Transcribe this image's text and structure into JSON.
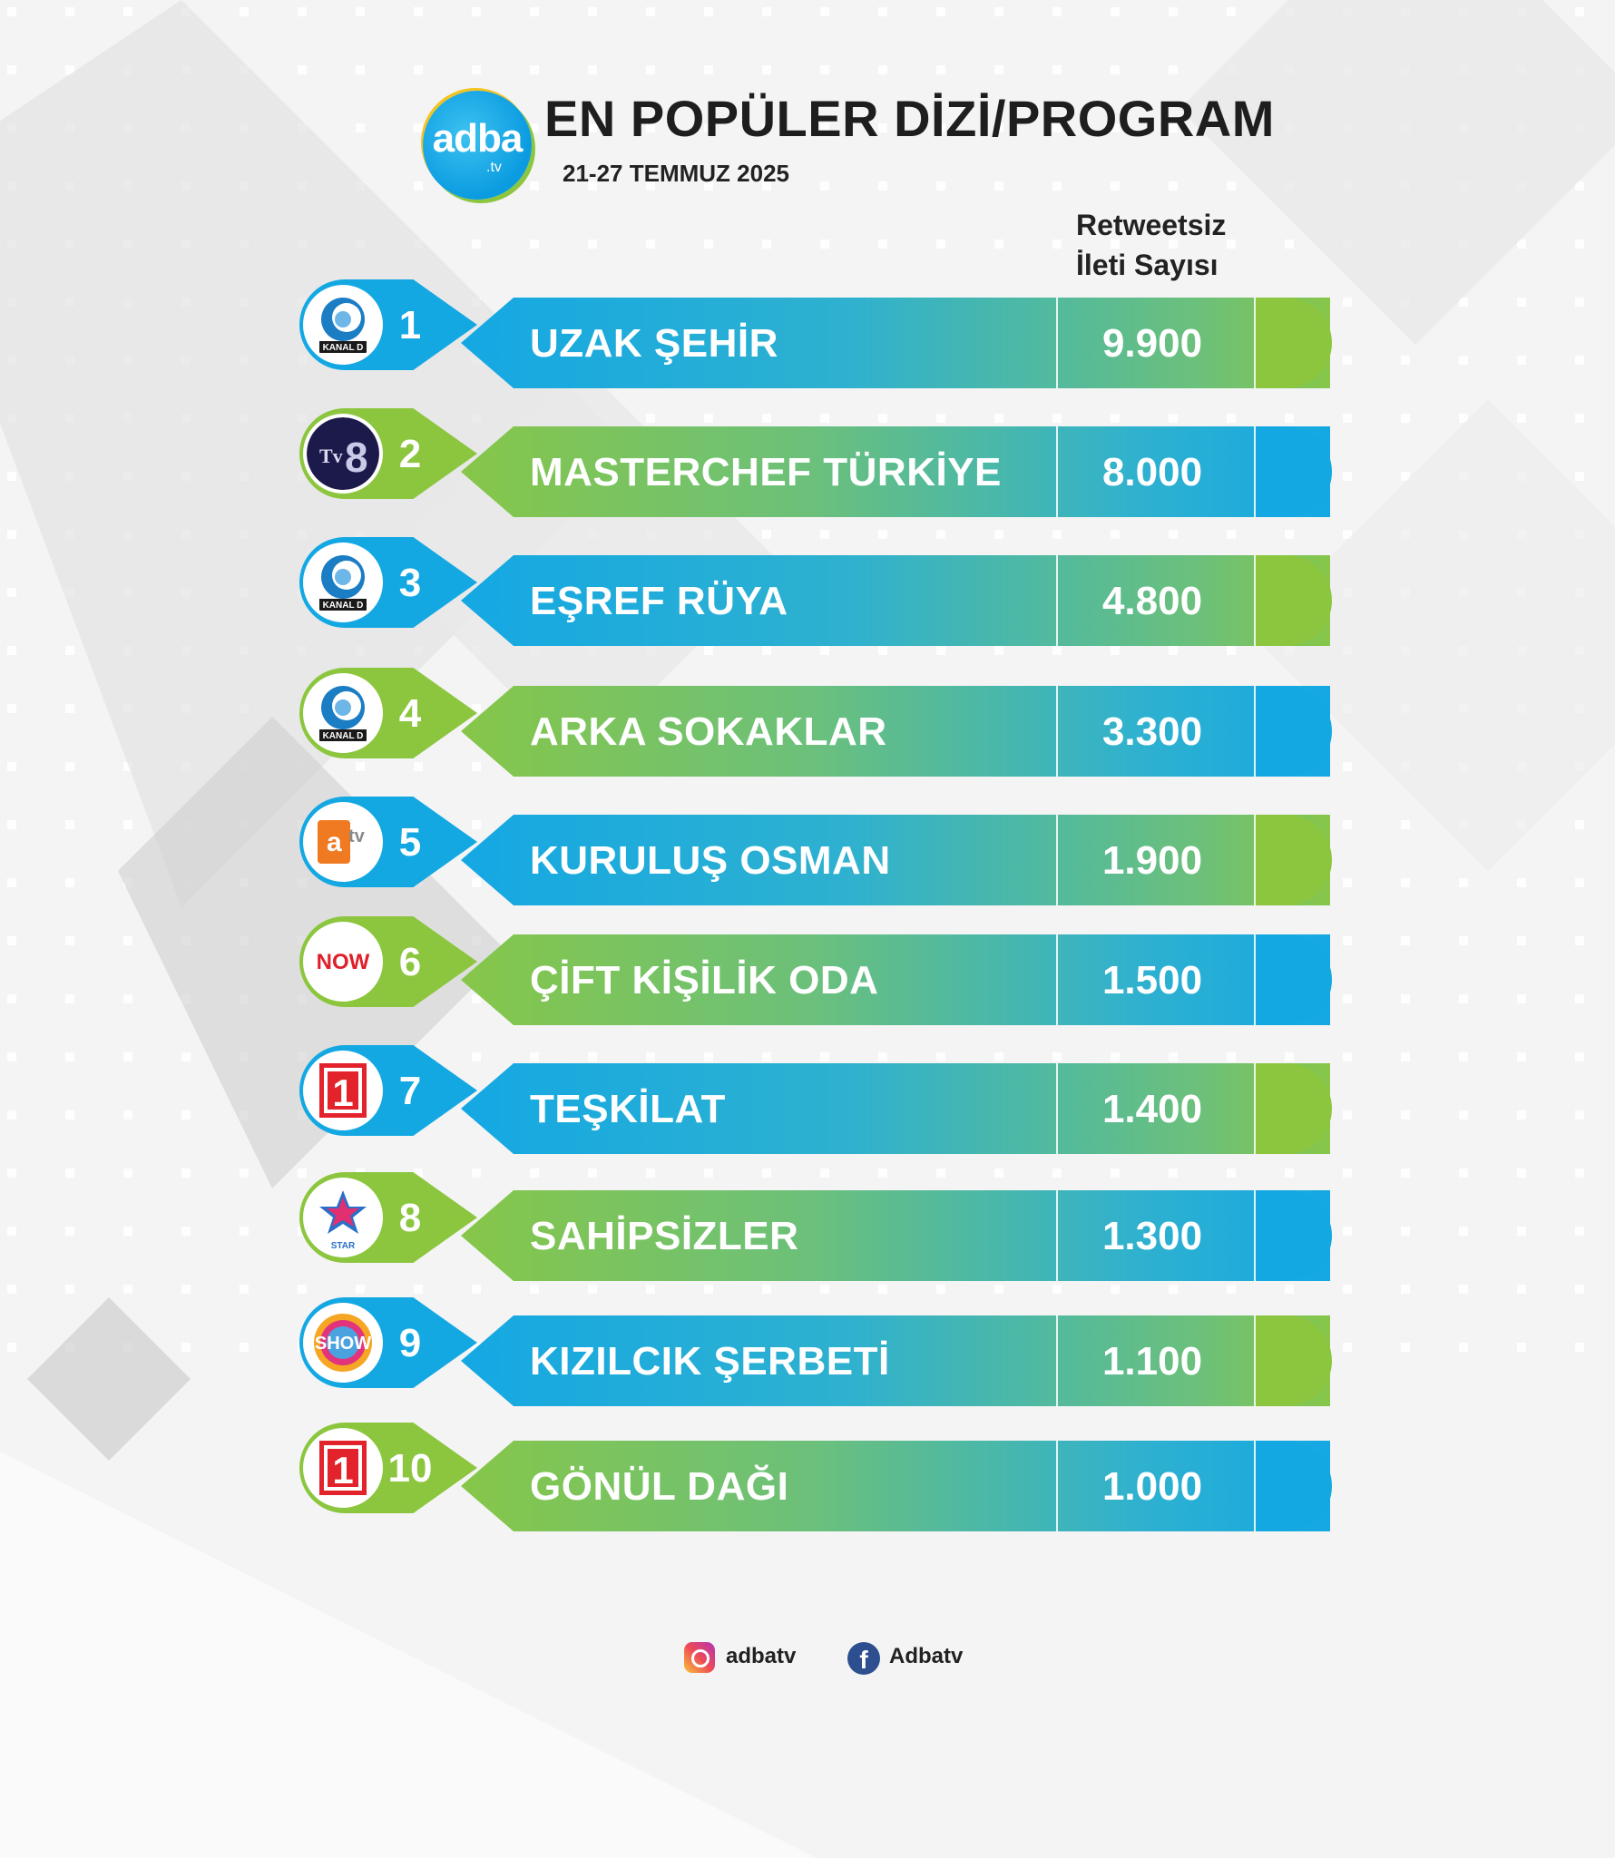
{
  "header": {
    "brand": "adba",
    "brand_suffix": ".tv",
    "title": "EN POPÜLER DİZİ/PROGRAM",
    "date_range": "21-27 TEMMUZ 2025",
    "column_header_line1": "Retweetsiz",
    "column_header_line2": "İleti Sayısı"
  },
  "colors": {
    "blue": "#14a8e3",
    "green": "#8cc63f",
    "teal_mid": "#3fb7b6"
  },
  "chart_data": {
    "type": "table",
    "title": "EN POPÜLER DİZİ/PROGRAM",
    "subtitle": "21-27 TEMMUZ 2025",
    "value_label": "Retweetsiz İleti Sayısı",
    "rows": [
      {
        "rank": "1",
        "channel": "KANAL D",
        "channel_icon": "kanal-d-logo",
        "name": "UZAK ŞEHİR",
        "value_text": "9.900",
        "value": 9900,
        "style": "blue"
      },
      {
        "rank": "2",
        "channel": "TV8",
        "channel_icon": "tv8-logo",
        "name": "MASTERCHEF TÜRKİYE",
        "value_text": "8.000",
        "value": 8000,
        "style": "green"
      },
      {
        "rank": "3",
        "channel": "KANAL D",
        "channel_icon": "kanal-d-logo",
        "name": "EŞREF RÜYA",
        "value_text": "4.800",
        "value": 4800,
        "style": "blue"
      },
      {
        "rank": "4",
        "channel": "KANAL D",
        "channel_icon": "kanal-d-logo",
        "name": "ARKA SOKAKLAR",
        "value_text": "3.300",
        "value": 3300,
        "style": "green"
      },
      {
        "rank": "5",
        "channel": "atv",
        "channel_icon": "atv-logo",
        "name": "KURULUŞ OSMAN",
        "value_text": "1.900",
        "value": 1900,
        "style": "blue"
      },
      {
        "rank": "6",
        "channel": "NOW",
        "channel_icon": "now-logo",
        "name": "ÇİFT KİŞİLİK ODA",
        "value_text": "1.500",
        "value": 1500,
        "style": "green"
      },
      {
        "rank": "7",
        "channel": "1",
        "channel_icon": "trt1-logo",
        "name": "TEŞKİLAT",
        "value_text": "1.400",
        "value": 1400,
        "style": "blue"
      },
      {
        "rank": "8",
        "channel": "STAR",
        "channel_icon": "star-logo",
        "name": "SAHİPSİZLER",
        "value_text": "1.300",
        "value": 1300,
        "style": "green"
      },
      {
        "rank": "9",
        "channel": "SHOW",
        "channel_icon": "show-logo",
        "name": "KIZILCIK ŞERBETİ",
        "value_text": "1.100",
        "value": 1100,
        "style": "blue"
      },
      {
        "rank": "10",
        "channel": "1",
        "channel_icon": "trt1-logo",
        "name": "GÖNÜL DAĞI",
        "value_text": "1.000",
        "value": 1000,
        "style": "green"
      }
    ]
  },
  "footer": {
    "instagram_icon": "instagram-icon",
    "instagram_handle": "adbatv",
    "facebook_icon": "facebook-icon",
    "facebook_handle": "Adbatv"
  }
}
